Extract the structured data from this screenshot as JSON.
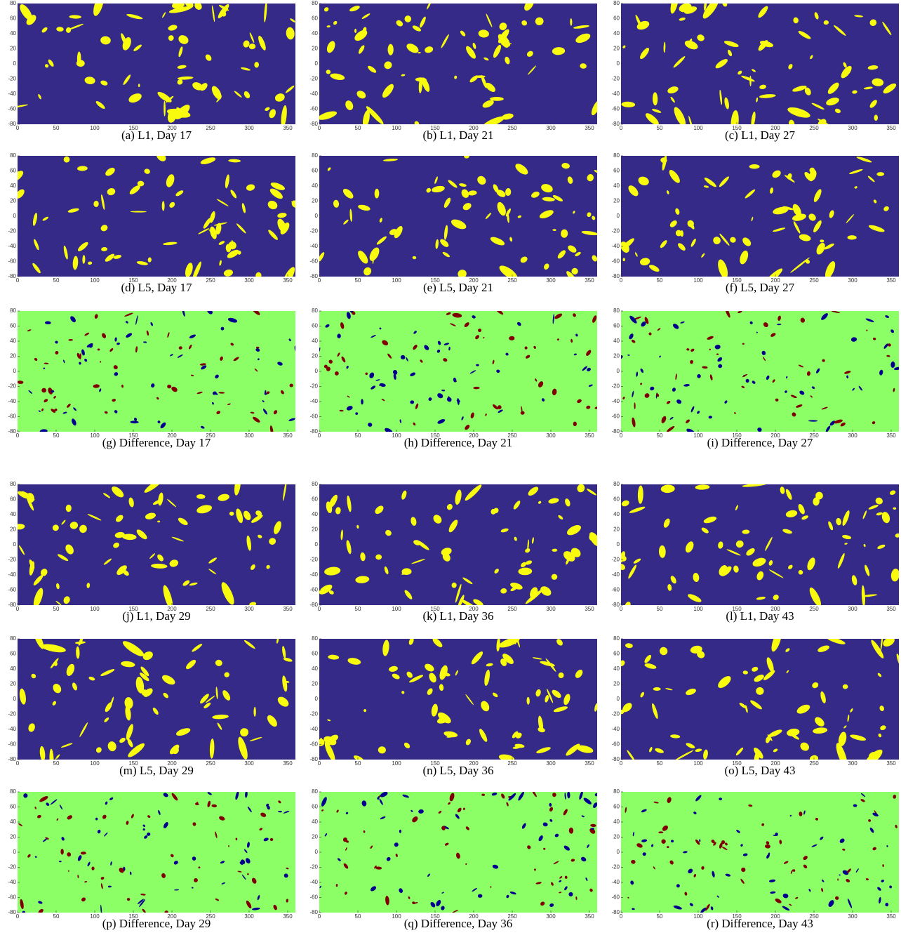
{
  "figure": {
    "xlim": [
      0,
      360
    ],
    "xticks": [
      0,
      50,
      100,
      150,
      200,
      250,
      300,
      350
    ],
    "ylim": [
      -80,
      80
    ],
    "yticks": [
      -80,
      -60,
      -40,
      -20,
      0,
      20,
      40,
      60,
      80
    ],
    "colors": {
      "map_background": "#352a87",
      "map_mark": "#f9fb0e",
      "difference_background": "#8cff66",
      "difference_marks": [
        "#800000",
        "#00008f"
      ]
    },
    "panels": [
      {
        "caption": "(a) L1, Day 17",
        "kind": "map"
      },
      {
        "caption": "(b) L1, Day 21",
        "kind": "map"
      },
      {
        "caption": "(c) L1, Day 27",
        "kind": "map"
      },
      {
        "caption": "(d) L5, Day 17",
        "kind": "map"
      },
      {
        "caption": "(e) L5, Day 21",
        "kind": "map"
      },
      {
        "caption": "(f) L5, Day 27",
        "kind": "map"
      },
      {
        "caption": "(g) Difference, Day 17",
        "kind": "difference"
      },
      {
        "caption": "(h) Difference, Day 21",
        "kind": "difference"
      },
      {
        "caption": "(i) Difference, Day 27",
        "kind": "difference"
      },
      {
        "caption": "(j) L1, Day 29",
        "kind": "map"
      },
      {
        "caption": "(k) L1, Day 36",
        "kind": "map"
      },
      {
        "caption": "(l) L1, Day 43",
        "kind": "map"
      },
      {
        "caption": "(m) L5, Day 29",
        "kind": "map"
      },
      {
        "caption": "(n) L5, Day 36",
        "kind": "map"
      },
      {
        "caption": "(o) L5, Day 43",
        "kind": "map"
      },
      {
        "caption": "(p) Difference, Day 29",
        "kind": "difference"
      },
      {
        "caption": "(q) Difference, Day 36",
        "kind": "difference"
      },
      {
        "caption": "(r) Difference, Day 43",
        "kind": "difference"
      }
    ]
  }
}
